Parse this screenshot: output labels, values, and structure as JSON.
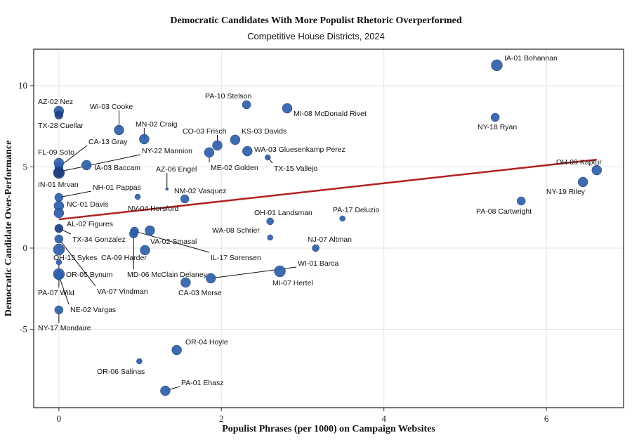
{
  "chart_data": {
    "type": "scatter",
    "title": "Democratic Candidates With More Populist Rhetoric Overperformed",
    "subtitle": "Competitive House Districts, 2024",
    "xlabel": "Populist Phrases (per 1000) on Campaign Websites",
    "ylabel": "Democratic Candidate Over-Performance",
    "xlim": [
      -0.31,
      6.95
    ],
    "ylim": [
      -9.83,
      12.25
    ],
    "xticks": [
      0,
      2,
      4,
      6
    ],
    "yticks": [
      -5,
      0,
      5,
      10
    ],
    "xtick_labels": [
      "0",
      "2",
      "4",
      "6"
    ],
    "ytick_labels": [
      "-5",
      "0",
      "5",
      "10"
    ],
    "grid": true,
    "point_color": "#2f5fa8",
    "trend_color": "#b22222",
    "trend_line": {
      "x": [
        0,
        6.62
      ],
      "y": [
        1.77,
        5.45
      ]
    },
    "points": [
      {
        "label": "AZ-02 Nez",
        "x": 0,
        "y": 8.44
      },
      {
        "label": "TX-28 Cuellar",
        "x": 0,
        "y": 8.2
      },
      {
        "label": "WI-03 Cooke",
        "x": 0.74,
        "y": 7.27
      },
      {
        "label": "MN-02 Craig",
        "x": 1.05,
        "y": 6.71
      },
      {
        "label": "CA-13 Gray",
        "x": 0,
        "y": 5.0
      },
      {
        "label": "FL-09 Soto",
        "x": 0,
        "y": 5.24
      },
      {
        "label": "NY-22 Mannion",
        "x": 0,
        "y": 4.7
      },
      {
        "label": "IA-03 Baccam",
        "x": 0.34,
        "y": 5.11
      },
      {
        "label": "IN-01 Mrvan",
        "x": 0,
        "y": 4.63
      },
      {
        "label": "AZ-06 Engel",
        "x": 1.33,
        "y": 3.64
      },
      {
        "label": "NH-01 Pappas",
        "x": 0,
        "y": 3.12
      },
      {
        "label": "NC-01 Davis",
        "x": 0,
        "y": 2.6
      },
      {
        "label": "NV-04 Horsford",
        "x": 0.97,
        "y": 3.16
      },
      {
        "label": "NM-02 Vasquez",
        "x": 1.55,
        "y": 3.03
      },
      {
        "label": "AL-02 Figures",
        "x": 0,
        "y": 2.16
      },
      {
        "label": "TX-34 Gonzalez",
        "x": 0,
        "y": 1.21
      },
      {
        "label": "OH-13 Sykes",
        "x": 0,
        "y": -0.09
      },
      {
        "label": "CA-09 Harder",
        "x": 1.06,
        "y": -0.13
      },
      {
        "label": "OR-05 Bynum",
        "x": 0,
        "y": -1.6
      },
      {
        "label": "PA-07 Wild",
        "x": 0,
        "y": -0.87
      },
      {
        "label": "VA-07 Vindman",
        "x": 0,
        "y": 0.56
      },
      {
        "label": "NE-02 Vargas",
        "x": 0,
        "y": -1.7
      },
      {
        "label": "NY-17 Mondaire",
        "x": 0,
        "y": -3.81
      },
      {
        "label": "VA-02 Smasal",
        "x": 1.12,
        "y": 1.08
      },
      {
        "label": "IL-17 Sorensen",
        "x": 0.93,
        "y": 1.04
      },
      {
        "label": "MD-06 McClain Delaney",
        "x": 0.92,
        "y": 0.87
      },
      {
        "label": "CA-03 Morse",
        "x": 1.56,
        "y": -2.12
      },
      {
        "label": "WI-01 Barca",
        "x": 1.87,
        "y": -1.86
      },
      {
        "label": "MI-07 Hertel",
        "x": 2.72,
        "y": -1.43
      },
      {
        "label": "PA-10 Stelson",
        "x": 2.31,
        "y": 8.83
      },
      {
        "label": "MI-08 McDonald Rivet",
        "x": 2.81,
        "y": 8.61
      },
      {
        "label": "CO-03 Frisch",
        "x": 1.95,
        "y": 6.32
      },
      {
        "label": "KS-03 Davids",
        "x": 2.17,
        "y": 6.67
      },
      {
        "label": "WA-03 Gluesenkamp Perez",
        "x": 2.32,
        "y": 5.97
      },
      {
        "label": "ME-02 Golden",
        "x": 1.85,
        "y": 5.89
      },
      {
        "label": "TX-15 Vallejo",
        "x": 2.57,
        "y": 5.58
      },
      {
        "label": "OH-01 Landsman",
        "x": 2.6,
        "y": 1.65
      },
      {
        "label": "PA-17 Deluzio",
        "x": 3.49,
        "y": 1.82
      },
      {
        "label": "WA-08 Schrier",
        "x": 2.6,
        "y": 0.65
      },
      {
        "label": "NJ-07 Altman",
        "x": 3.16,
        "y": 0.0
      },
      {
        "label": "IA-01 Bohannan",
        "x": 5.39,
        "y": 11.26
      },
      {
        "label": "NY-18 Ryan",
        "x": 5.37,
        "y": 8.05
      },
      {
        "label": "OH-09 Kaptur",
        "x": 6.62,
        "y": 4.8
      },
      {
        "label": "NY-19 Riley",
        "x": 6.45,
        "y": 4.07
      },
      {
        "label": "PA-08 Cartwright",
        "x": 5.69,
        "y": 2.9
      },
      {
        "label": "OR-04 Hoyle",
        "x": 1.45,
        "y": -6.28
      },
      {
        "label": "OR-06 Salinas",
        "x": 0.99,
        "y": -6.97
      },
      {
        "label": "PA-01 Ehasz",
        "x": 1.31,
        "y": -8.79
      }
    ]
  }
}
